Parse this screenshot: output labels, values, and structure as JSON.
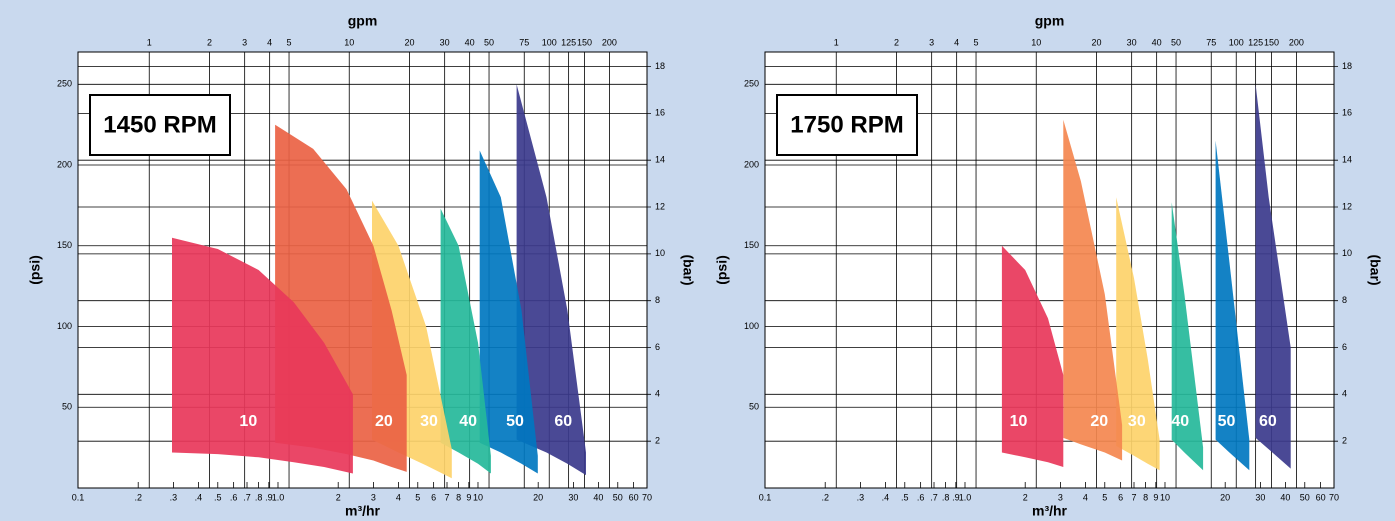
{
  "chart_data": [
    {
      "type": "area-range",
      "title": "1450 RPM",
      "xlabel": "m³/hr",
      "x2label": "gpm",
      "ylabel": "(psi)",
      "y2label": "(bar)",
      "xscale": "log",
      "xlim": [
        0.1,
        70
      ],
      "xticks": [
        0.1,
        {
          "value": 0.2,
          "label": ".2"
        },
        {
          "value": 0.3,
          "label": ".3"
        },
        {
          "value": 0.4,
          "label": ".4"
        },
        {
          "value": 0.5,
          "label": ".5"
        },
        {
          "value": 0.6,
          "label": ".6"
        },
        {
          "value": 0.7,
          "label": ".7"
        },
        {
          "value": 0.8,
          "label": ".8"
        },
        {
          "value": 0.9,
          "label": ".9"
        },
        {
          "value": 1,
          "label": "1.0"
        },
        2,
        3,
        4,
        5,
        6,
        7,
        8,
        9,
        10,
        20,
        30,
        40,
        50,
        60,
        70
      ],
      "x2lim": [
        0.4403,
        308.2
      ],
      "x2ticks": [
        1,
        2,
        3,
        4,
        5,
        10,
        20,
        30,
        40,
        50,
        75,
        100,
        125,
        150,
        200
      ],
      "ylim": [
        0,
        270
      ],
      "yticks": [
        50,
        100,
        150,
        200,
        250
      ],
      "y2lim": [
        0,
        18.62
      ],
      "y2ticks": [
        2,
        4,
        6,
        8,
        10,
        12,
        14,
        16,
        18
      ],
      "series": [
        {
          "name": "10",
          "color": "#e8375a",
          "x": [
            0.295,
            0.5,
            0.8,
            1.2,
            1.7,
            2.37
          ],
          "upper": [
            155,
            148,
            135,
            115,
            90,
            58
          ],
          "lower": [
            22,
            21,
            19,
            16,
            13,
            9
          ]
        },
        {
          "name": "20",
          "color": "#ea6244",
          "x": [
            0.967,
            1.5,
            2.2,
            3,
            3.7,
            4.4
          ],
          "upper": [
            225,
            210,
            185,
            150,
            110,
            70
          ],
          "lower": [
            28,
            25,
            21,
            17,
            13,
            10
          ]
        },
        {
          "name": "30",
          "color": "#fdd36a",
          "x": [
            2.95,
            4,
            5.5,
            7.4
          ],
          "upper": [
            178,
            150,
            100,
            24
          ],
          "lower": [
            30,
            22,
            14,
            6
          ]
        },
        {
          "name": "40",
          "color": "#25b89a",
          "x": [
            6.5,
            8,
            10,
            11.6
          ],
          "upper": [
            173,
            150,
            90,
            20
          ],
          "lower": [
            28,
            22,
            15,
            9
          ]
        },
        {
          "name": "50",
          "color": "#0077c0",
          "x": [
            10.2,
            13,
            16.5,
            19.9
          ],
          "upper": [
            209,
            180,
            110,
            20
          ],
          "lower": [
            28,
            22,
            15,
            9
          ]
        },
        {
          "name": "60",
          "color": "#3b3a8c",
          "x": [
            15.6,
            22,
            28,
            34.7
          ],
          "upper": [
            250,
            180,
            110,
            22
          ],
          "lower": [
            30,
            22,
            15,
            8
          ]
        }
      ]
    },
    {
      "type": "area-range",
      "title": "1750 RPM",
      "xlabel": "m³/hr",
      "x2label": "gpm",
      "ylabel": "(psi)",
      "y2label": "(bar)",
      "xscale": "log",
      "xlim": [
        0.1,
        70
      ],
      "xticks": [
        0.1,
        {
          "value": 0.2,
          "label": ".2"
        },
        {
          "value": 0.3,
          "label": ".3"
        },
        {
          "value": 0.4,
          "label": ".4"
        },
        {
          "value": 0.5,
          "label": ".5"
        },
        {
          "value": 0.6,
          "label": ".6"
        },
        {
          "value": 0.7,
          "label": ".7"
        },
        {
          "value": 0.8,
          "label": ".8"
        },
        {
          "value": 0.9,
          "label": ".9"
        },
        {
          "value": 1,
          "label": "1.0"
        },
        2,
        3,
        4,
        5,
        6,
        7,
        8,
        9,
        10,
        20,
        30,
        40,
        50,
        60,
        70
      ],
      "x2lim": [
        0.4403,
        308.2
      ],
      "x2ticks": [
        1,
        2,
        3,
        4,
        5,
        10,
        20,
        30,
        40,
        50,
        75,
        100,
        125,
        150,
        200
      ],
      "ylim": [
        0,
        270
      ],
      "yticks": [
        50,
        100,
        150,
        200,
        250
      ],
      "y2lim": [
        0,
        18.62
      ],
      "y2ticks": [
        2,
        4,
        6,
        8,
        10,
        12,
        14,
        16,
        18
      ],
      "series": [
        {
          "name": "10",
          "color": "#e8375a",
          "x": [
            1.53,
            2,
            2.6,
            3.1
          ],
          "upper": [
            150,
            135,
            105,
            70
          ],
          "lower": [
            22,
            19,
            16,
            13
          ]
        },
        {
          "name": "20",
          "color": "#f4874f",
          "x": [
            3.1,
            3.8,
            5,
            6.1
          ],
          "upper": [
            228,
            190,
            120,
            39
          ],
          "lower": [
            31,
            27,
            22,
            17
          ]
        },
        {
          "name": "30",
          "color": "#fdd36a",
          "x": [
            5.7,
            7,
            8.2,
            9.4
          ],
          "upper": [
            180,
            130,
            80,
            30
          ],
          "lower": [
            26,
            20,
            15,
            11
          ]
        },
        {
          "name": "40",
          "color": "#25b89a",
          "x": [
            10.8,
            12.5,
            15.5
          ],
          "upper": [
            177,
            120,
            25
          ],
          "lower": [
            30,
            22,
            11
          ]
        },
        {
          "name": "50",
          "color": "#0077c0",
          "x": [
            17.9,
            21,
            26.4
          ],
          "upper": [
            215,
            140,
            30
          ],
          "lower": [
            30,
            22,
            11
          ]
        },
        {
          "name": "60",
          "color": "#3b3a8c",
          "x": [
            28.4,
            33,
            42.5
          ],
          "upper": [
            250,
            180,
            87
          ],
          "lower": [
            31,
            24,
            12
          ]
        }
      ]
    }
  ]
}
